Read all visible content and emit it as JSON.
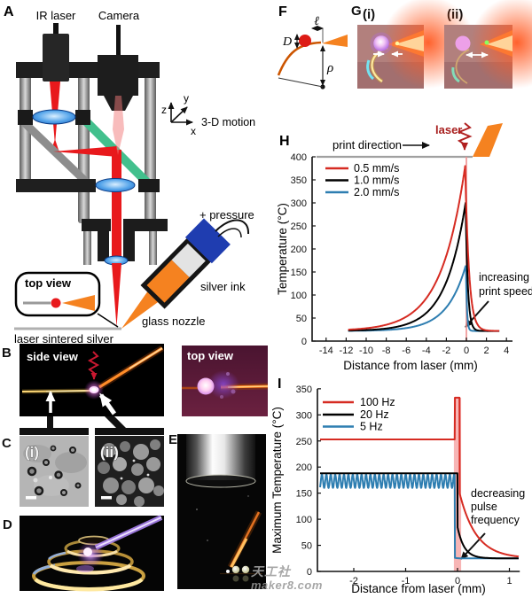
{
  "panels": {
    "A": {
      "label": "A",
      "ir_laser": "IR laser",
      "camera": "Camera",
      "motion_label": "3-D motion",
      "axis_x": "x",
      "axis_y": "y",
      "axis_z": "z",
      "pressure_label": "+ pressure",
      "silver_ink_label": "silver ink",
      "glass_nozzle_label": "glass nozzle",
      "substrate_label": "laser sintered silver",
      "inset_label": "top view"
    },
    "F": {
      "label": "F",
      "dim_l": "ℓ",
      "dim_D": "D",
      "dim_rho": "ρ"
    },
    "G": {
      "label": "G",
      "sub_i": "(i)",
      "sub_ii": "(ii)"
    },
    "B": {
      "label": "B",
      "side_label": "side view",
      "top_label": "top view"
    },
    "C": {
      "label": "C",
      "sub_i": "(i)",
      "sub_ii": "(ii)"
    },
    "D": {
      "label": "D"
    },
    "E": {
      "label": "E"
    },
    "H": {
      "label": "H"
    },
    "I": {
      "label": "I"
    }
  },
  "chart_data": [
    {
      "id": "H",
      "type": "line",
      "title": "",
      "xlabel": "Distance from laser (mm)",
      "ylabel": "Temperature (°C)",
      "xlim": [
        -15.4,
        4.6
      ],
      "ylim": [
        0,
        400
      ],
      "xticks": [
        -14,
        -12,
        -10,
        -8,
        -6,
        -4,
        -2,
        0,
        2,
        4
      ],
      "yticks": [
        0,
        50,
        100,
        150,
        200,
        250,
        300,
        350,
        400
      ],
      "grid": false,
      "legend_position": "upper-left",
      "annotations": {
        "print_direction": "print direction",
        "laser": "laser",
        "note_line1": "increasing",
        "note_line2": "print speed"
      },
      "laser_line_x": 0,
      "laser_line_color": "#f09090",
      "baseline": 22,
      "x_range": [
        -11.8,
        3.3
      ],
      "series": [
        {
          "name": "0.5 mm/s",
          "color": "#d62b22",
          "peak": 380,
          "peak_x": -0.12,
          "tau_left": 2.4,
          "tau_right": 0.38
        },
        {
          "name": "1.0 mm/s",
          "color": "#000000",
          "peak": 300,
          "peak_x": -0.08,
          "tau_left": 2.0,
          "tau_right": 0.22
        },
        {
          "name": "2.0 mm/s",
          "color": "#2e7eb1",
          "peak": 165,
          "peak_x": -0.05,
          "tau_left": 1.9,
          "tau_right": 0.1
        }
      ]
    },
    {
      "id": "I",
      "type": "line",
      "title": "",
      "xlabel": "Distance from laser (mm)",
      "ylabel": "Maximum Temperature (°C)",
      "xlim": [
        -2.7,
        1.2
      ],
      "ylim": [
        0,
        350
      ],
      "xticks": [
        -2,
        -1,
        0,
        1
      ],
      "yticks": [
        0,
        50,
        100,
        150,
        200,
        250,
        300,
        350
      ],
      "grid": false,
      "legend_position": "upper-left",
      "annotations": {
        "note_line1": "decreasing",
        "note_line2": "pulse",
        "note_line3": "frequency"
      },
      "laser_band": {
        "x0": -0.07,
        "x1": 0.07,
        "top": 333,
        "color": "#f28d8d"
      },
      "baseline": 25,
      "x_range": [
        -2.65,
        1.18
      ],
      "series": [
        {
          "name": "100 Hz",
          "color": "#d62b22",
          "flat": 253,
          "spike": 333,
          "spike_x0": -0.05,
          "spike_x1": 0.04,
          "tail_top": 150,
          "tau": 0.32
        },
        {
          "name": "20 Hz",
          "color": "#000000",
          "flat": 188,
          "spike_x0": 0,
          "tail_top": 85,
          "tau": 0.13
        },
        {
          "name": "5 Hz",
          "color": "#2e7eb1",
          "flat": 173,
          "osc_amplitude": 13,
          "osc_period": 0.085,
          "spike_x0": -0.05,
          "tail_top": 26,
          "tau": 0.05
        }
      ]
    }
  ],
  "watermark": {
    "line1": "天工社",
    "line2": "maker8.com"
  }
}
